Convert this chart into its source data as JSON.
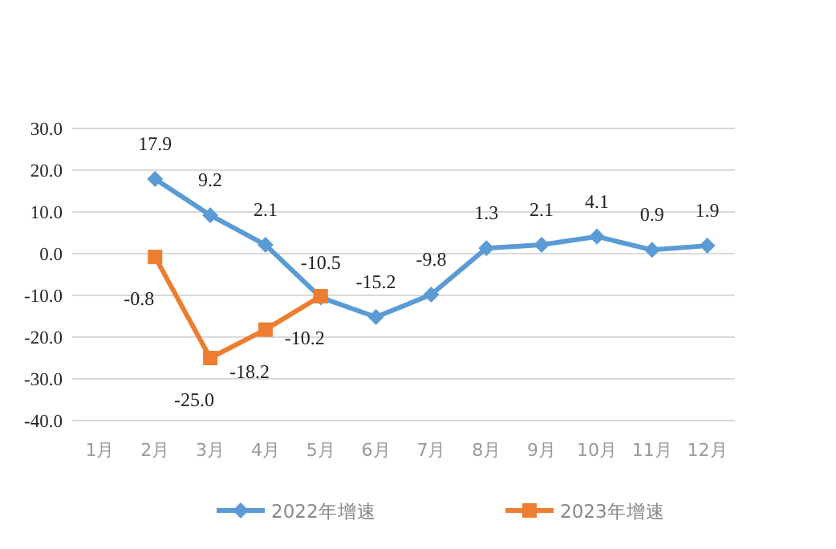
{
  "chart_data": {
    "type": "line",
    "categories": [
      "1月",
      "2月",
      "3月",
      "4月",
      "5月",
      "6月",
      "7月",
      "8月",
      "9月",
      "10月",
      "11月",
      "12月"
    ],
    "series": [
      {
        "name": "2022年增速",
        "color": "#5b9bd5",
        "marker": "diamond",
        "values": [
          null,
          17.9,
          9.2,
          2.1,
          -10.5,
          -15.2,
          -9.8,
          1.3,
          2.1,
          4.1,
          0.9,
          1.9
        ],
        "value_labels": [
          null,
          "17.9",
          "9.2",
          "2.1",
          "-10.5",
          "-15.2",
          "-9.8",
          "1.3",
          "2.1",
          "4.1",
          "0.9",
          "1.9"
        ]
      },
      {
        "name": "2023年增速",
        "color": "#ed7d31",
        "marker": "square",
        "values": [
          null,
          -0.8,
          -25.0,
          -18.2,
          -10.2,
          null,
          null,
          null,
          null,
          null,
          null,
          null
        ],
        "value_labels": [
          null,
          "-0.8",
          "-25.0",
          "-18.2",
          "-10.2",
          null,
          null,
          null,
          null,
          null,
          null,
          null
        ]
      }
    ],
    "ylim": [
      -40,
      30
    ],
    "yticks": [
      {
        "value": -40,
        "label": "-40.0"
      },
      {
        "value": -30,
        "label": "-30.0"
      },
      {
        "value": -20,
        "label": "-20.0"
      },
      {
        "value": -10,
        "label": "-10.0"
      },
      {
        "value": 0,
        "label": "0.0"
      },
      {
        "value": 10,
        "label": "10.0"
      },
      {
        "value": 20,
        "label": "20.0"
      },
      {
        "value": 30,
        "label": "30.0"
      }
    ],
    "grid": "y",
    "legend": "bottom",
    "line_style": "solid"
  }
}
